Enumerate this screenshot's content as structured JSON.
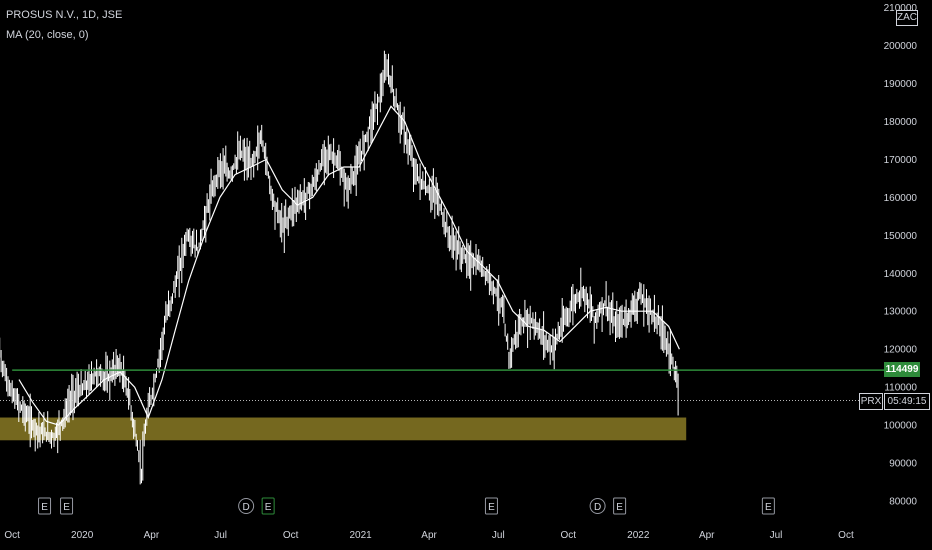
{
  "header": {
    "symbol_line": "PROSUS N.V., 1D, JSE",
    "indicator_line": "MA (20, close, 0)"
  },
  "currency": "ZAC",
  "price_tag": "114499",
  "countdown": {
    "symbol": "PRX",
    "time": "05:49:15"
  },
  "colors": {
    "background": "#000000",
    "candles": "#ffffff",
    "ma_line": "#ffffff",
    "support_line": "#2e8b3a",
    "zone_fill": "#8a7a24",
    "text": "#d1d4dc"
  },
  "events": [
    {
      "date": "2019-11-27",
      "marks": [
        "E",
        "E"
      ]
    },
    {
      "date": "2020-08-18",
      "marks": [
        "D",
        "E"
      ]
    },
    {
      "date": "2021-06-22",
      "marks": [
        "E"
      ]
    },
    {
      "date": "2021-11-23",
      "marks": [
        "D",
        "E"
      ]
    },
    {
      "date": "2022-06-21",
      "marks": [
        "E"
      ]
    }
  ],
  "chart_data": {
    "type": "line",
    "ylim": [
      75000,
      212000
    ],
    "yticks": [
      "80000",
      "90000",
      "100000",
      "110000",
      "120000",
      "130000",
      "140000",
      "150000",
      "160000",
      "170000",
      "180000",
      "190000",
      "200000",
      "210000"
    ],
    "xlim": [
      "2019-09-15",
      "2022-11-20"
    ],
    "xticks": [
      {
        "label": "Oct",
        "date": "2019-10-01"
      },
      {
        "label": "2020",
        "date": "2020-01-01"
      },
      {
        "label": "Apr",
        "date": "2020-04-01"
      },
      {
        "label": "Jul",
        "date": "2020-07-01"
      },
      {
        "label": "Oct",
        "date": "2020-10-01"
      },
      {
        "label": "2021",
        "date": "2021-01-01"
      },
      {
        "label": "Apr",
        "date": "2021-04-01"
      },
      {
        "label": "Jul",
        "date": "2021-07-01"
      },
      {
        "label": "Oct",
        "date": "2021-10-01"
      },
      {
        "label": "2022",
        "date": "2022-01-01"
      },
      {
        "label": "Apr",
        "date": "2022-04-01"
      },
      {
        "label": "Jul",
        "date": "2022-07-01"
      },
      {
        "label": "Oct",
        "date": "2022-10-01"
      }
    ],
    "series": [
      {
        "name": "PROSUS N.V., 1D, JSE",
        "kind": "price",
        "points": [
          [
            "2019-09-11",
            124000
          ],
          [
            "2019-09-20",
            114000
          ],
          [
            "2019-10-01",
            108000
          ],
          [
            "2019-10-15",
            104000
          ],
          [
            "2019-10-28",
            100000
          ],
          [
            "2019-11-10",
            98000
          ],
          [
            "2019-11-25",
            97000
          ],
          [
            "2019-12-08",
            102000
          ],
          [
            "2019-12-20",
            108000
          ],
          [
            "2020-01-05",
            110000
          ],
          [
            "2020-01-20",
            114000
          ],
          [
            "2020-02-03",
            112000
          ],
          [
            "2020-02-18",
            116000
          ],
          [
            "2020-03-02",
            108000
          ],
          [
            "2020-03-12",
            96000
          ],
          [
            "2020-03-19",
            88000
          ],
          [
            "2020-03-26",
            102000
          ],
          [
            "2020-04-06",
            112000
          ],
          [
            "2020-04-20",
            128000
          ],
          [
            "2020-05-04",
            138000
          ],
          [
            "2020-05-18",
            150000
          ],
          [
            "2020-06-01",
            146000
          ],
          [
            "2020-06-15",
            158000
          ],
          [
            "2020-06-29",
            168000
          ],
          [
            "2020-07-13",
            166000
          ],
          [
            "2020-07-27",
            172000
          ],
          [
            "2020-08-10",
            168000
          ],
          [
            "2020-08-24",
            176000
          ],
          [
            "2020-09-07",
            160000
          ],
          [
            "2020-09-21",
            152000
          ],
          [
            "2020-10-05",
            158000
          ],
          [
            "2020-10-19",
            160000
          ],
          [
            "2020-11-02",
            164000
          ],
          [
            "2020-11-16",
            172000
          ],
          [
            "2020-11-30",
            170000
          ],
          [
            "2020-12-14",
            162000
          ],
          [
            "2020-12-28",
            168000
          ],
          [
            "2021-01-11",
            178000
          ],
          [
            "2021-01-25",
            186000
          ],
          [
            "2021-02-05",
            194000
          ],
          [
            "2021-02-15",
            186000
          ],
          [
            "2021-03-01",
            176000
          ],
          [
            "2021-03-15",
            166000
          ],
          [
            "2021-03-29",
            162000
          ],
          [
            "2021-04-12",
            160000
          ],
          [
            "2021-04-26",
            150000
          ],
          [
            "2021-05-10",
            146000
          ],
          [
            "2021-05-24",
            143000
          ],
          [
            "2021-06-07",
            142000
          ],
          [
            "2021-06-21",
            138000
          ],
          [
            "2021-07-05",
            132000
          ],
          [
            "2021-07-15",
            118000
          ],
          [
            "2021-07-29",
            126000
          ],
          [
            "2021-08-12",
            128000
          ],
          [
            "2021-08-26",
            124000
          ],
          [
            "2021-09-09",
            120000
          ],
          [
            "2021-09-23",
            126000
          ],
          [
            "2021-10-07",
            132000
          ],
          [
            "2021-10-21",
            136000
          ],
          [
            "2021-11-04",
            128000
          ],
          [
            "2021-11-18",
            132000
          ],
          [
            "2021-12-02",
            126000
          ],
          [
            "2021-12-16",
            128000
          ],
          [
            "2022-01-03",
            134000
          ],
          [
            "2022-01-17",
            130000
          ],
          [
            "2022-01-31",
            126000
          ],
          [
            "2022-02-14",
            118000
          ],
          [
            "2022-02-24",
            106500
          ]
        ]
      },
      {
        "name": "MA (20, close, 0)",
        "kind": "moving_average",
        "points": [
          [
            "2019-10-10",
            112000
          ],
          [
            "2019-10-28",
            106000
          ],
          [
            "2019-11-15",
            101000
          ],
          [
            "2019-12-01",
            100000
          ],
          [
            "2019-12-20",
            104000
          ],
          [
            "2020-01-10",
            108000
          ],
          [
            "2020-01-30",
            112000
          ],
          [
            "2020-02-20",
            114000
          ],
          [
            "2020-03-10",
            110000
          ],
          [
            "2020-03-28",
            102000
          ],
          [
            "2020-04-15",
            112000
          ],
          [
            "2020-05-01",
            124000
          ],
          [
            "2020-05-20",
            138000
          ],
          [
            "2020-06-10",
            150000
          ],
          [
            "2020-06-30",
            160000
          ],
          [
            "2020-07-20",
            166000
          ],
          [
            "2020-08-10",
            168000
          ],
          [
            "2020-08-30",
            170000
          ],
          [
            "2020-09-20",
            162000
          ],
          [
            "2020-10-10",
            158000
          ],
          [
            "2020-10-30",
            160000
          ],
          [
            "2020-11-20",
            166000
          ],
          [
            "2020-12-10",
            168000
          ],
          [
            "2020-12-30",
            168000
          ],
          [
            "2021-01-20",
            176000
          ],
          [
            "2021-02-10",
            184000
          ],
          [
            "2021-02-28",
            180000
          ],
          [
            "2021-03-20",
            170000
          ],
          [
            "2021-04-10",
            162000
          ],
          [
            "2021-05-01",
            154000
          ],
          [
            "2021-05-20",
            146000
          ],
          [
            "2021-06-10",
            142000
          ],
          [
            "2021-06-30",
            138000
          ],
          [
            "2021-07-20",
            130000
          ],
          [
            "2021-08-10",
            126000
          ],
          [
            "2021-08-30",
            125000
          ],
          [
            "2021-09-20",
            122000
          ],
          [
            "2021-10-10",
            126000
          ],
          [
            "2021-10-30",
            130000
          ],
          [
            "2021-11-20",
            131000
          ],
          [
            "2021-12-10",
            130000
          ],
          [
            "2021-12-30",
            130000
          ],
          [
            "2022-01-20",
            130000
          ],
          [
            "2022-02-10",
            126000
          ],
          [
            "2022-02-24",
            120000
          ]
        ]
      }
    ],
    "horizontal_line": {
      "value": 114499
    },
    "zone": {
      "from": 96000,
      "to": 102000,
      "start": "2019-09-01",
      "end": "2022-03-05"
    },
    "last_price_line": {
      "value": 106500
    }
  }
}
